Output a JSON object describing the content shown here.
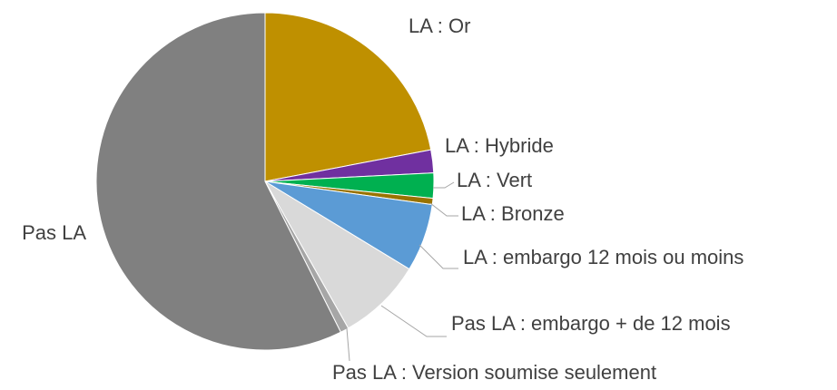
{
  "chart_data": {
    "type": "pie",
    "categories": [
      "LA : Or",
      "LA : Hybride",
      "LA : Vert",
      "LA : Bronze",
      "LA : embargo 12 mois ou moins",
      "Pas LA : embargo + de 12 mois",
      "Pas LA : Version soumise seulement",
      "Pas LA"
    ],
    "values": [
      22,
      2.2,
      2.4,
      0.6,
      6.5,
      8.1,
      0.8,
      57.4
    ],
    "colors": [
      "#bf9000",
      "#7030a0",
      "#00b050",
      "#997300",
      "#5b9bd5",
      "#d9d9d9",
      "#a6a6a6",
      "#808080"
    ]
  }
}
